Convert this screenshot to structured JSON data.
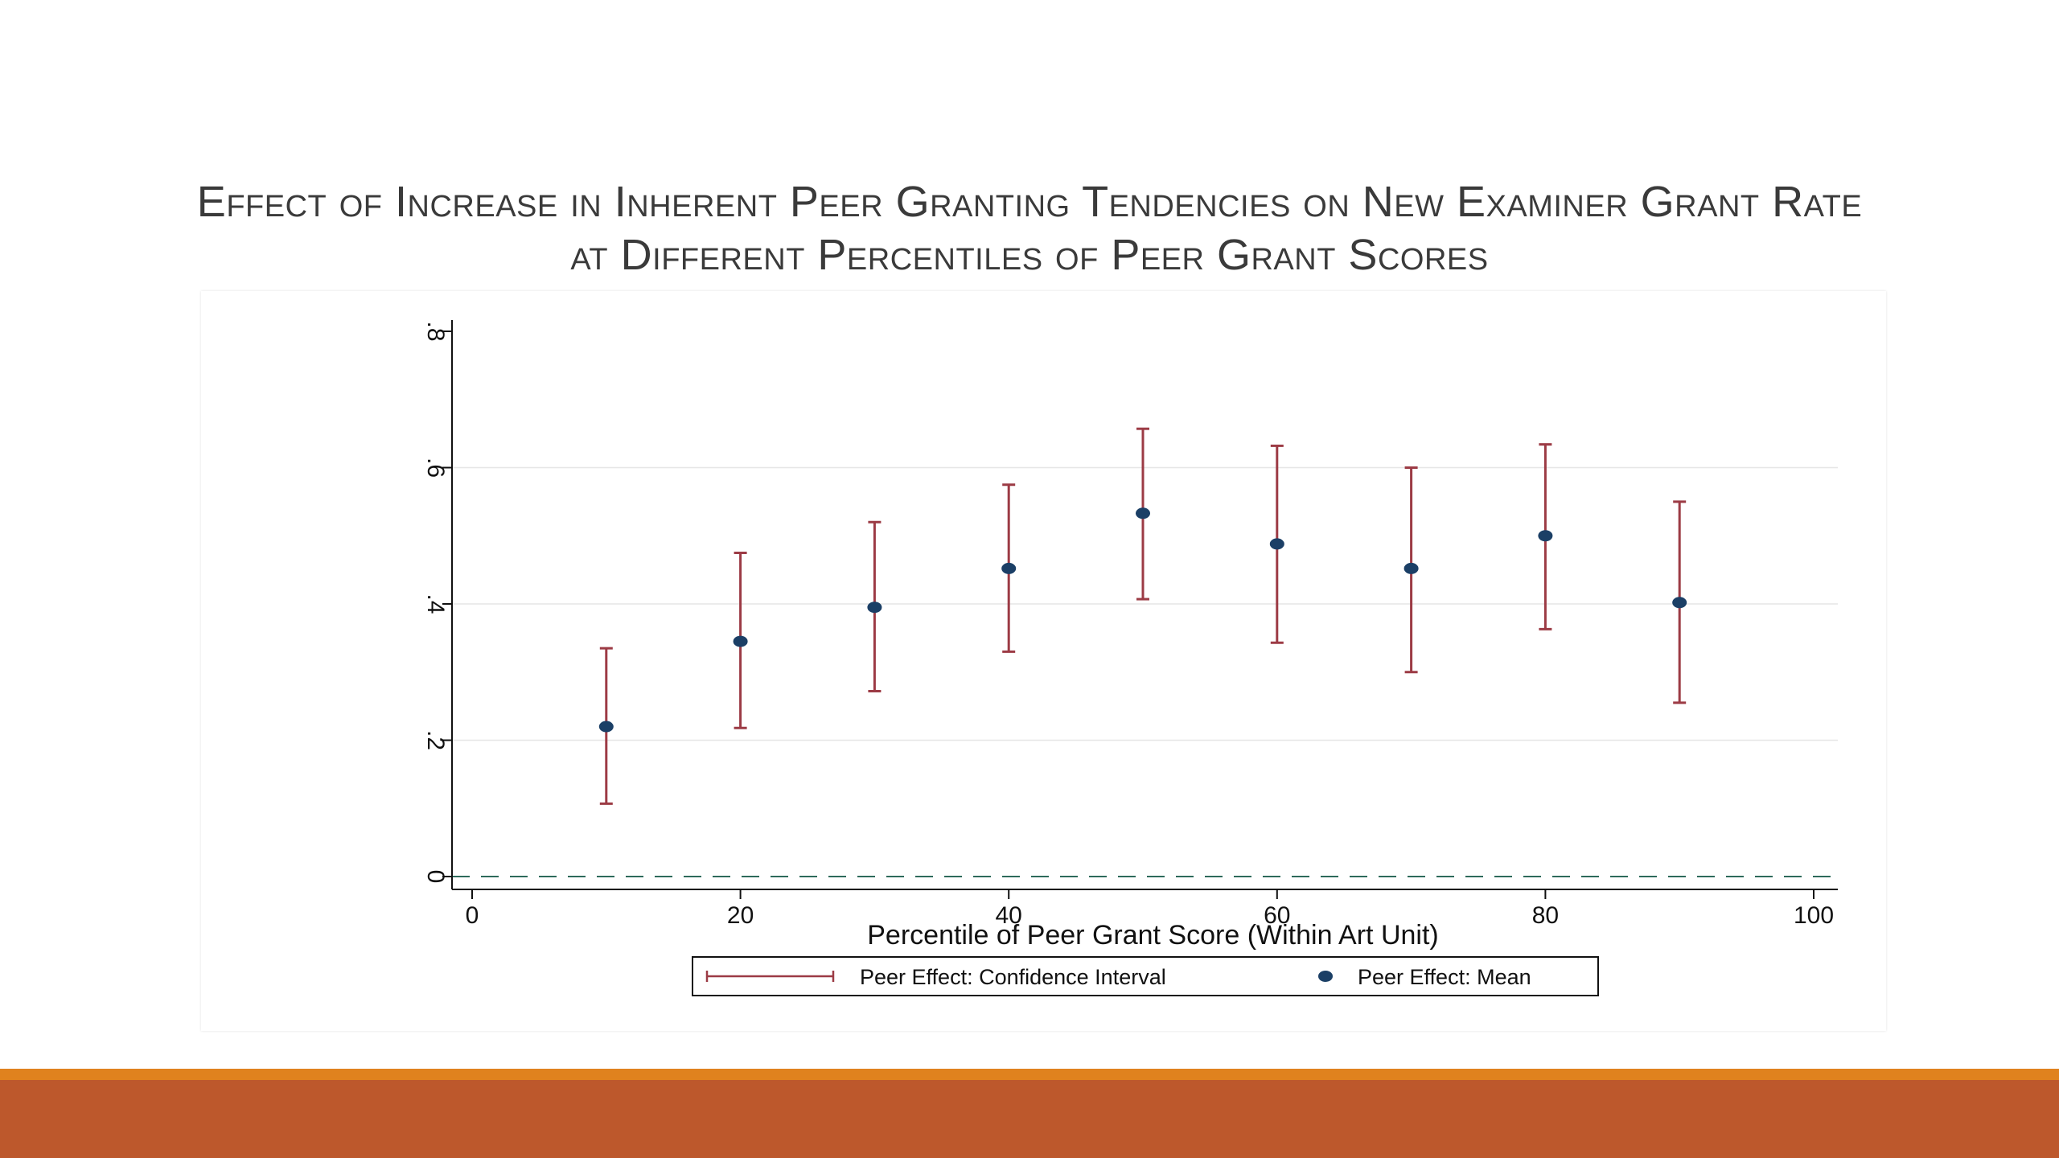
{
  "slide": {
    "title_line1": "Effect of Increase in Inherent Peer Granting Tendencies on New Examiner Grant Rate",
    "title_line2": "at Different Percentiles of Peer Grant Scores"
  },
  "colors": {
    "ci": "#9c3b45",
    "mean": "#1b3f66",
    "zero_line": "#2e6a5b",
    "footer_top": "#e0821e",
    "footer": "#bd582c"
  },
  "chart_data": {
    "type": "scatter",
    "title": "",
    "xlabel": "Percentile of Peer Grant Score (Within Art Unit)",
    "ylabel": "",
    "xlim": [
      0,
      100
    ],
    "ylim": [
      0,
      0.8
    ],
    "x_ticks": [
      0,
      20,
      40,
      60,
      80,
      100
    ],
    "x_tick_labels": [
      "0",
      "20",
      "40",
      "60",
      "80",
      "100"
    ],
    "y_ticks": [
      0,
      0.2,
      0.4,
      0.6,
      0.8
    ],
    "y_tick_labels": [
      "0",
      ".2",
      ".4",
      ".6",
      ".8"
    ],
    "grid": true,
    "reference_line": {
      "y": 0,
      "style": "dashed"
    },
    "x": [
      10,
      20,
      30,
      40,
      50,
      60,
      70,
      80,
      90
    ],
    "series": [
      {
        "name": "Peer Effect: Mean",
        "kind": "point",
        "values": [
          0.22,
          0.345,
          0.395,
          0.452,
          0.533,
          0.488,
          0.452,
          0.5,
          0.402
        ]
      },
      {
        "name": "Peer Effect: Confidence Interval",
        "kind": "errorbar",
        "lower": [
          0.107,
          0.218,
          0.272,
          0.33,
          0.407,
          0.343,
          0.3,
          0.363,
          0.255
        ],
        "upper": [
          0.335,
          0.475,
          0.52,
          0.575,
          0.657,
          0.632,
          0.6,
          0.634,
          0.55
        ]
      }
    ],
    "legend": {
      "position": "bottom",
      "items": [
        "Peer Effect: Confidence Interval",
        "Peer Effect: Mean"
      ]
    }
  }
}
